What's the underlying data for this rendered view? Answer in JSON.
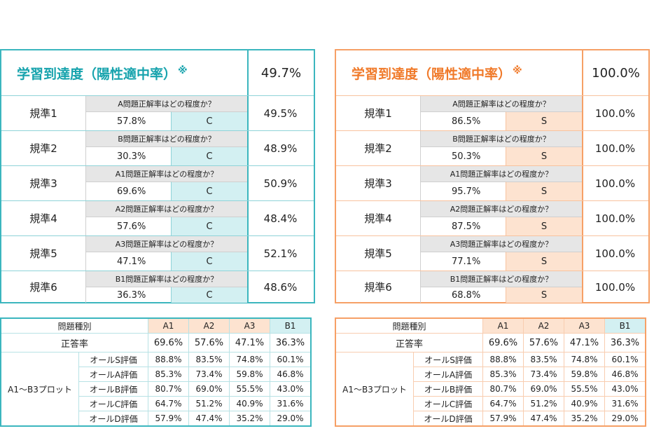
{
  "title_text": "学習到達度（陽性適中率）",
  "title_mark": "※",
  "panels": [
    {
      "overall": "49.7%",
      "rows": [
        {
          "name": "規準1",
          "question": "A問題正解率はどの程度か？",
          "pct": "57.8%",
          "grade": "C",
          "value": "49.5%"
        },
        {
          "name": "規準2",
          "question": "B問題正解率はどの程度か？",
          "pct": "30.3%",
          "grade": "C",
          "value": "48.9%"
        },
        {
          "name": "規準3",
          "question": "A1問題正解率はどの程度か？",
          "pct": "69.6%",
          "grade": "C",
          "value": "50.9%"
        },
        {
          "name": "規準4",
          "question": "A2問題正解率はどの程度か？",
          "pct": "57.6%",
          "grade": "C",
          "value": "48.4%"
        },
        {
          "name": "規準5",
          "question": "A3問題正解率はどの程度か？",
          "pct": "47.1%",
          "grade": "C",
          "value": "52.1%"
        },
        {
          "name": "規準6",
          "question": "B1問題正解率はどの程度か？",
          "pct": "36.3%",
          "grade": "C",
          "value": "48.6%"
        }
      ]
    },
    {
      "overall": "100.0%",
      "rows": [
        {
          "name": "規準1",
          "question": "A問題正解率はどの程度か？",
          "pct": "86.5%",
          "grade": "S",
          "value": "100.0%"
        },
        {
          "name": "規準2",
          "question": "B問題正解率はどの程度か？",
          "pct": "50.3%",
          "grade": "S",
          "value": "100.0%"
        },
        {
          "name": "規準3",
          "question": "A1問題正解率はどの程度か？",
          "pct": "95.7%",
          "grade": "S",
          "value": "100.0%"
        },
        {
          "name": "規準4",
          "question": "A2問題正解率はどの程度か？",
          "pct": "87.5%",
          "grade": "S",
          "value": "100.0%"
        },
        {
          "name": "規準5",
          "question": "A3問題正解率はどの程度か？",
          "pct": "77.1%",
          "grade": "S",
          "value": "100.0%"
        },
        {
          "name": "規準6",
          "question": "B1問題正解率はどの程度か？",
          "pct": "68.8%",
          "grade": "S",
          "value": "100.0%"
        }
      ]
    }
  ],
  "table": {
    "type_header": "問題種別",
    "columns": [
      "A1",
      "A2",
      "A3",
      "B1"
    ],
    "rate_label": "正答率",
    "rates": [
      "69.6%",
      "57.6%",
      "47.1%",
      "36.3%"
    ],
    "plot_label": "A1～B3プロット",
    "plot_rows": [
      {
        "label": "オールS評価",
        "values": [
          "88.8%",
          "83.5%",
          "74.8%",
          "60.1%"
        ]
      },
      {
        "label": "オールA評価",
        "values": [
          "85.3%",
          "73.4%",
          "59.8%",
          "46.8%"
        ]
      },
      {
        "label": "オールB評価",
        "values": [
          "80.7%",
          "69.0%",
          "55.5%",
          "43.0%"
        ]
      },
      {
        "label": "オールC評価",
        "values": [
          "64.7%",
          "51.2%",
          "40.9%",
          "31.6%"
        ]
      },
      {
        "label": "オールD評価",
        "values": [
          "57.9%",
          "47.4%",
          "35.2%",
          "29.0%"
        ]
      }
    ]
  },
  "colors": {
    "teal": "#3bb6be",
    "orange": "#f6a066"
  }
}
